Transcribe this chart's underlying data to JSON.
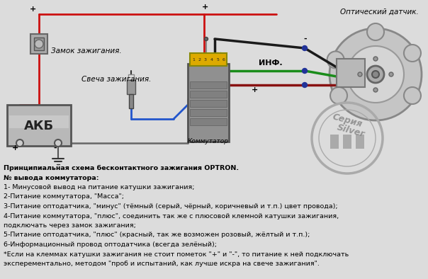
{
  "bg_color": "#dcdcdc",
  "text_lines": [
    "Принципиальная схема бесконтактного зажигания OPTRON.",
    "№ вывода коммутатора:",
    "1- Минусовой вывод на питание катушки зажигания;",
    "2-Питание коммутатора, \"Масса\";",
    "3-Питание оптодатчика, \"минус\" (тёмный (серый, чёрный, коричневый и т.п.) цвет провода);",
    "4-Питание коммутатора, \"плюс\", соединить так же с плюсовой клемной катушки зажигания,",
    "подключать через замок зажигания;",
    "5-Питание оптодатчика, \"плюс\" (красный, так же возможен розовый, жёлтый и т.п.);",
    "6-Информационный провод оптодатчика (всегда зелёный);",
    "*Если на клеммах катушки зажигания не стоит пометок \"+\" и \"-\", то питание к ней подключать",
    "эксперементально, методом \"проб и испытаний, как лучше искра на свече зажигания\"."
  ],
  "label_zamok": "Замок зажигания.",
  "label_svecha": "Свеча зажигания.",
  "label_akb": "АКБ",
  "label_kommutator": "Коммутатор",
  "label_opticheskiy": "Оптический датчик.",
  "label_inf": "ИНФ.",
  "label_seria_1": "Серия",
  "label_seria_2": "Silver",
  "font_size_text": 6.8,
  "font_size_label": 7.5,
  "wire_red": "#cc1111",
  "wire_black": "#1a1a1a",
  "wire_green": "#1a8c1a",
  "wire_blue": "#2255cc",
  "wire_darkred": "#881111"
}
